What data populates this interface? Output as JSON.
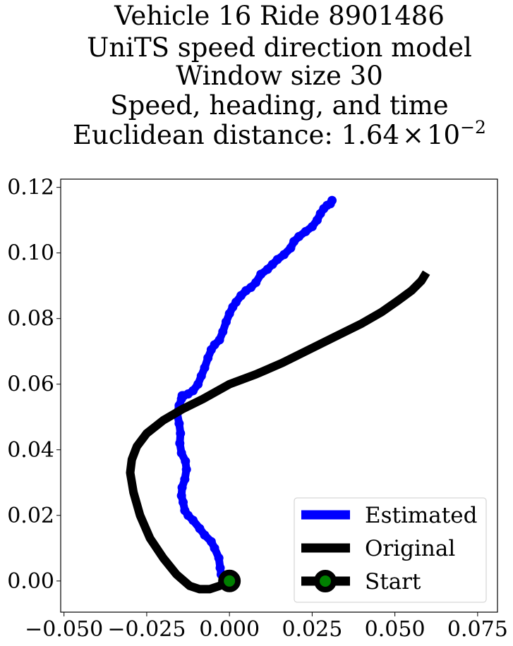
{
  "chart_data": {
    "type": "line",
    "title_lines": [
      "Vehicle 16 Ride 8901486",
      "UniTS speed direction model",
      "Window size 30",
      "Speed, heading, and time"
    ],
    "title_metric_prefix": "Euclidean distance: 1.64",
    "title_metric_times": "×",
    "title_metric_base": "10",
    "title_metric_exponent": "−2",
    "xlabel": "",
    "ylabel": "",
    "xlim": [
      -0.051,
      0.081
    ],
    "ylim": [
      -0.0095,
      0.1225
    ],
    "x_ticks": [
      -0.05,
      -0.025,
      0.0,
      0.025,
      0.05,
      0.075
    ],
    "x_tick_labels": [
      "−0.050",
      "−0.025",
      "0.000",
      "0.025",
      "0.050",
      "0.075"
    ],
    "y_ticks": [
      0.0,
      0.02,
      0.04,
      0.06,
      0.08,
      0.1,
      0.12
    ],
    "y_tick_labels": [
      "0.00",
      "0.02",
      "0.04",
      "0.06",
      "0.08",
      "0.10",
      "0.12"
    ],
    "grid": false,
    "legend_position": "lower right",
    "series": [
      {
        "name": "Estimated",
        "color": "#0000ff",
        "x": [
          0.0,
          -0.0015,
          -0.0025,
          -0.0028,
          -0.0032,
          -0.0045,
          -0.0055,
          -0.0075,
          -0.009,
          -0.011,
          -0.0125,
          -0.0135,
          -0.014,
          -0.0145,
          -0.0143,
          -0.0135,
          -0.013,
          -0.0133,
          -0.0145,
          -0.015,
          -0.0148,
          -0.0152,
          -0.0158,
          -0.0152,
          -0.0145,
          -0.0143,
          -0.0138,
          -0.0125,
          -0.011,
          -0.0095,
          -0.0085,
          -0.0075,
          -0.0065,
          -0.0055,
          -0.0045,
          -0.003,
          -0.002,
          -0.001,
          0.0,
          0.001,
          0.002,
          0.0035,
          0.005,
          0.0065,
          0.008,
          0.0095,
          0.0115,
          0.013,
          0.0145,
          0.0165,
          0.0185,
          0.0195,
          0.021,
          0.023,
          0.025,
          0.0265,
          0.0275,
          0.0285,
          0.0295,
          0.0305,
          0.031
        ],
        "y": [
          0.0,
          0.0005,
          0.002,
          0.004,
          0.007,
          0.01,
          0.012,
          0.014,
          0.016,
          0.0185,
          0.02,
          0.0215,
          0.024,
          0.026,
          0.0285,
          0.031,
          0.034,
          0.0365,
          0.039,
          0.042,
          0.045,
          0.048,
          0.051,
          0.0535,
          0.0555,
          0.0565,
          0.0565,
          0.057,
          0.058,
          0.06,
          0.0625,
          0.065,
          0.068,
          0.0705,
          0.072,
          0.0735,
          0.076,
          0.079,
          0.0815,
          0.0835,
          0.085,
          0.087,
          0.0885,
          0.0895,
          0.091,
          0.0935,
          0.095,
          0.0965,
          0.098,
          0.0995,
          0.1015,
          0.1035,
          0.105,
          0.1065,
          0.108,
          0.11,
          0.112,
          0.1135,
          0.1145,
          0.115,
          0.116
        ]
      },
      {
        "name": "Original",
        "color": "#000000",
        "x": [
          0.0,
          -0.003,
          -0.006,
          -0.009,
          -0.012,
          -0.016,
          -0.02,
          -0.024,
          -0.027,
          -0.029,
          -0.03,
          -0.0295,
          -0.028,
          -0.025,
          -0.02,
          -0.014,
          -0.008,
          0.0,
          0.008,
          0.016,
          0.024,
          0.032,
          0.04,
          0.046,
          0.051,
          0.055,
          0.058,
          0.0595
        ],
        "y": [
          0.0,
          -0.0015,
          -0.0025,
          -0.0025,
          -0.0015,
          0.002,
          0.007,
          0.013,
          0.02,
          0.027,
          0.033,
          0.037,
          0.041,
          0.045,
          0.049,
          0.0525,
          0.0555,
          0.06,
          0.063,
          0.0665,
          0.0705,
          0.0745,
          0.0785,
          0.082,
          0.0855,
          0.0885,
          0.0915,
          0.094
        ]
      },
      {
        "name": "Start",
        "color": "#000000",
        "marker_face": "#008000",
        "x": [
          0.0
        ],
        "y": [
          0.0
        ]
      }
    ]
  }
}
